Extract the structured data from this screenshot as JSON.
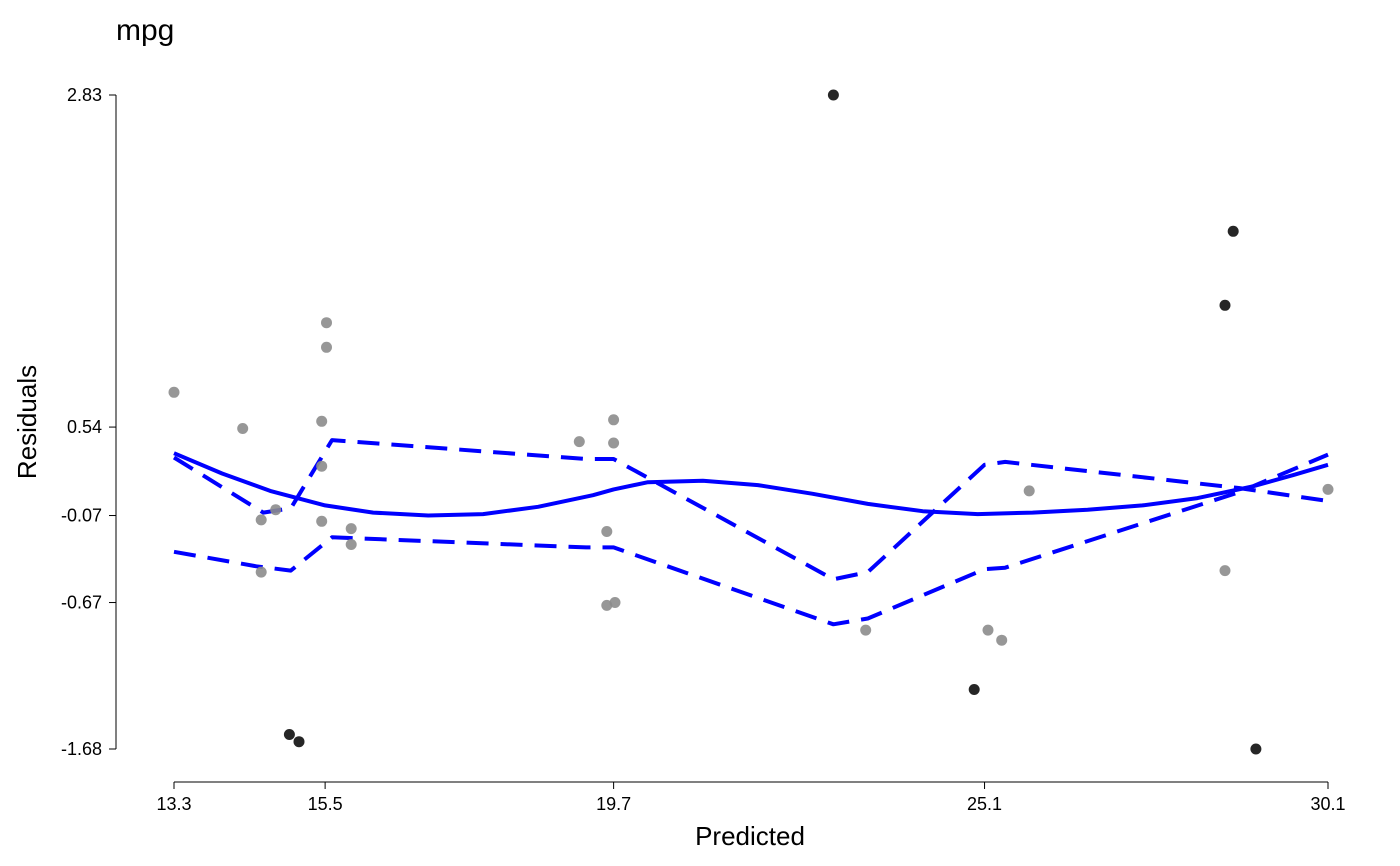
{
  "chart_data": {
    "type": "scatter",
    "title": "mpg",
    "xlabel": "Predicted",
    "ylabel": "Residuals",
    "xlim": [
      13.3,
      30.1
    ],
    "ylim": [
      -1.68,
      2.83
    ],
    "xticks": [
      "13.3",
      "15.5",
      "19.7",
      "25.1",
      "30.1"
    ],
    "yticks": [
      "2.83",
      "0.54",
      "-0.07",
      "-0.67",
      "-1.68"
    ],
    "grid": false,
    "legend": "none",
    "colors": {
      "normal_point": "#8c8c8c",
      "outlier_point": "#1a1a1a",
      "smooth_line": "#0000ff",
      "band_line": "#0000ff"
    },
    "points": [
      {
        "x": 13.3,
        "y": 0.78,
        "outlier": false
      },
      {
        "x": 14.3,
        "y": 0.53,
        "outlier": false
      },
      {
        "x": 14.57,
        "y": -0.1,
        "outlier": false
      },
      {
        "x": 14.57,
        "y": -0.46,
        "outlier": false
      },
      {
        "x": 14.78,
        "y": -0.03,
        "outlier": false
      },
      {
        "x": 14.98,
        "y": -1.58,
        "outlier": true
      },
      {
        "x": 15.12,
        "y": -1.63,
        "outlier": true
      },
      {
        "x": 15.45,
        "y": 0.58,
        "outlier": false
      },
      {
        "x": 15.45,
        "y": 0.27,
        "outlier": false
      },
      {
        "x": 15.45,
        "y": -0.11,
        "outlier": false
      },
      {
        "x": 15.52,
        "y": 1.26,
        "outlier": false
      },
      {
        "x": 15.52,
        "y": 1.09,
        "outlier": false
      },
      {
        "x": 15.88,
        "y": -0.16,
        "outlier": false
      },
      {
        "x": 15.88,
        "y": -0.27,
        "outlier": false
      },
      {
        "x": 19.2,
        "y": 0.44,
        "outlier": false
      },
      {
        "x": 19.6,
        "y": -0.18,
        "outlier": false
      },
      {
        "x": 19.6,
        "y": -0.69,
        "outlier": false
      },
      {
        "x": 19.7,
        "y": 0.59,
        "outlier": false
      },
      {
        "x": 19.7,
        "y": 0.43,
        "outlier": false
      },
      {
        "x": 19.72,
        "y": -0.67,
        "outlier": false
      },
      {
        "x": 22.9,
        "y": 2.83,
        "outlier": true
      },
      {
        "x": 23.37,
        "y": -0.86,
        "outlier": false
      },
      {
        "x": 24.95,
        "y": -1.27,
        "outlier": true
      },
      {
        "x": 25.15,
        "y": -0.86,
        "outlier": false
      },
      {
        "x": 25.35,
        "y": -0.93,
        "outlier": false
      },
      {
        "x": 25.75,
        "y": 0.1,
        "outlier": false
      },
      {
        "x": 28.6,
        "y": -0.45,
        "outlier": false
      },
      {
        "x": 28.6,
        "y": 1.38,
        "outlier": true
      },
      {
        "x": 28.72,
        "y": 1.89,
        "outlier": true
      },
      {
        "x": 29.05,
        "y": -1.68,
        "outlier": true
      },
      {
        "x": 30.1,
        "y": 0.11,
        "outlier": false
      }
    ],
    "smooth": {
      "x": [
        13.3,
        14.0,
        14.7,
        15.5,
        16.2,
        17.0,
        17.8,
        18.6,
        19.4,
        19.7,
        20.2,
        21.0,
        21.8,
        22.6,
        23.4,
        24.2,
        25.0,
        25.8,
        26.6,
        27.4,
        28.2,
        29.0,
        29.6,
        30.1
      ],
      "y": [
        0.36,
        0.22,
        0.1,
        0.0,
        -0.05,
        -0.07,
        -0.06,
        -0.01,
        0.07,
        0.11,
        0.16,
        0.17,
        0.14,
        0.08,
        0.01,
        -0.04,
        -0.06,
        -0.05,
        -0.03,
        0.0,
        0.05,
        0.13,
        0.21,
        0.28
      ]
    },
    "band_upper": {
      "x": [
        13.3,
        14.6,
        15.0,
        15.6,
        19.3,
        19.7,
        22.9,
        23.4,
        25.1,
        25.4,
        28.8,
        30.1
      ],
      "y": [
        0.33,
        -0.05,
        -0.02,
        0.45,
        0.32,
        0.32,
        -0.51,
        -0.46,
        0.28,
        0.3,
        0.12,
        0.03
      ]
    },
    "band_lower": {
      "x": [
        13.3,
        14.5,
        15.0,
        15.6,
        19.3,
        19.7,
        22.9,
        23.4,
        25.1,
        25.4,
        28.8,
        30.1
      ],
      "y": [
        -0.32,
        -0.42,
        -0.45,
        -0.22,
        -0.29,
        -0.29,
        -0.82,
        -0.78,
        -0.44,
        -0.43,
        0.09,
        0.35
      ]
    }
  }
}
